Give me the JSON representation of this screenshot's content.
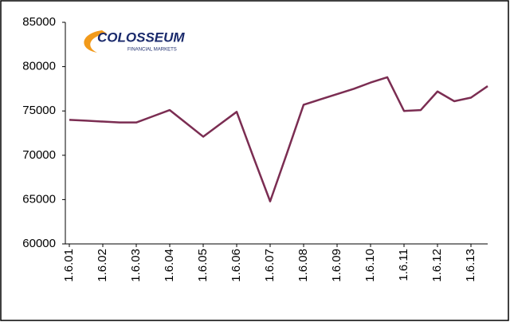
{
  "chart_data": {
    "type": "line",
    "logo": {
      "name": "COLOSSEUM",
      "tagline": "FINANCIAL MARKETS"
    },
    "categories": [
      "1.6.01",
      null,
      "1.6.02",
      null,
      "1.6.03",
      null,
      "1.6.04",
      null,
      "1.6.05",
      null,
      "1.6.06",
      null,
      "1.6.07",
      null,
      "1.6.08",
      null,
      "1.6.09",
      null,
      "1.6.10",
      null,
      "1.6.11",
      null,
      "1.6.12",
      null,
      "1.6.13",
      null
    ],
    "values": [
      74000,
      73900,
      73800,
      73700,
      73700,
      74400,
      75100,
      73600,
      72100,
      73500,
      74900,
      69800,
      64800,
      70200,
      75700,
      76300,
      76900,
      77500,
      78200,
      78800,
      75000,
      75100,
      77200,
      76100,
      76500,
      77800
    ],
    "color": "#7b2d52",
    "ylim": [
      60000,
      85000
    ],
    "yticks": [
      60000,
      65000,
      70000,
      75000,
      80000,
      85000
    ],
    "grid": false
  }
}
